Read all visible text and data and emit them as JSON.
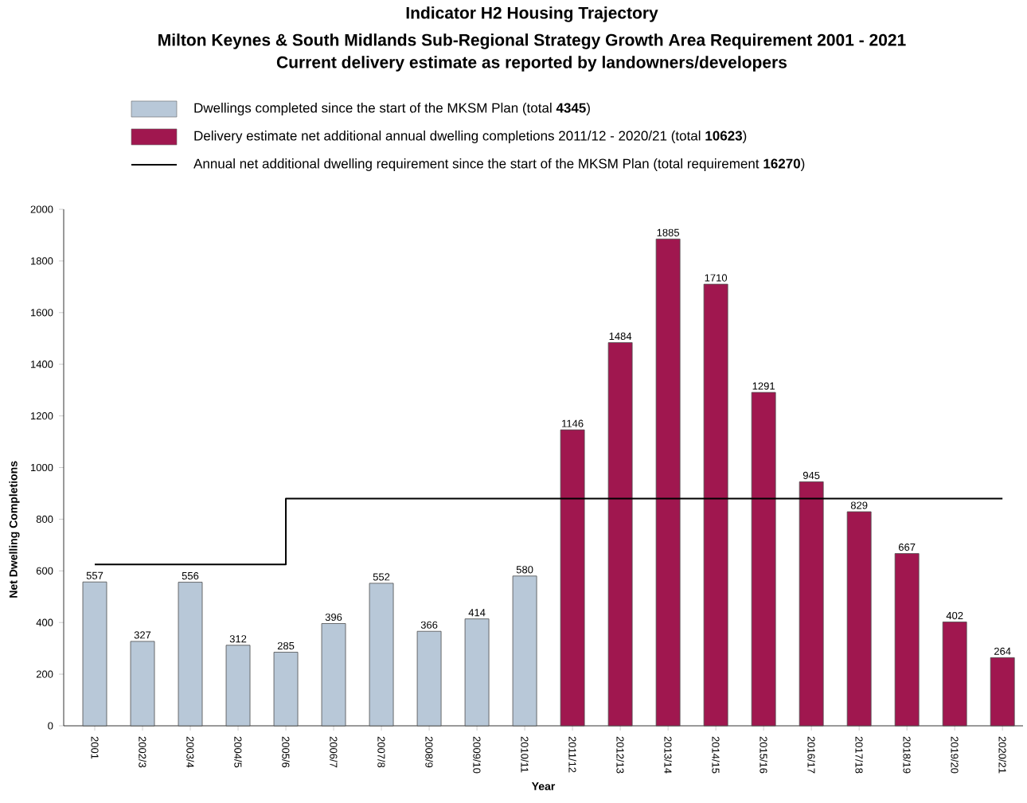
{
  "chart_data": {
    "type": "bar",
    "title": "Indicator H2  Housing Trajectory",
    "subtitle": "Milton Keynes & South Midlands Sub-Regional Strategy Growth Area Requirement 2001 - 2021",
    "annotations": [
      "Current delivery estimate as reported by landowners/developers"
    ],
    "xlabel": "Year",
    "ylabel": "Net Dwelling Completions",
    "categories": [
      "2001",
      "2002/3",
      "2003/4",
      "2004/5",
      "2005/6",
      "2006/7",
      "2007/8",
      "2008/9",
      "2009/10",
      "2010/11",
      "2011/12",
      "2012/13",
      "2013/14",
      "2014/15",
      "2015/16",
      "2016/17",
      "2017/18",
      "2018/19",
      "2019/20",
      "2020/21"
    ],
    "series": [
      {
        "name": "Dwellings completed since the start of the MKSM Plan (total **4345**)",
        "color": "#b8c8d8",
        "values": [
          557,
          327,
          556,
          312,
          285,
          396,
          552,
          366,
          414,
          580,
          null,
          null,
          null,
          null,
          null,
          null,
          null,
          null,
          null,
          null
        ],
        "value_labels": [
          "557",
          "327",
          "556",
          "312",
          "285",
          "396",
          "552",
          "366",
          "414",
          "580",
          null,
          null,
          null,
          null,
          null,
          null,
          null,
          null,
          null,
          null
        ]
      },
      {
        "name": "Delivery estimate net additional annual dwelling completions 2011/12 - 2020/21 (total **10623**)",
        "color": "#a0174f",
        "values": [
          null,
          null,
          null,
          null,
          null,
          null,
          null,
          null,
          null,
          null,
          1146,
          1484,
          1885,
          1710,
          1291,
          945,
          829,
          667,
          402,
          264
        ],
        "value_labels": [
          null,
          null,
          null,
          null,
          null,
          null,
          null,
          null,
          null,
          null,
          "1146",
          "1484",
          "1885",
          "1710",
          "1291",
          "945",
          "829",
          "667",
          "402",
          "264"
        ]
      },
      {
        "name": "Annual net additional dwelling requirement since the start of the MKSM Plan (total requirement **16270**)",
        "type": "step",
        "color": "#000000",
        "values": [
          625,
          625,
          625,
          625,
          880,
          880,
          880,
          880,
          880,
          880,
          880,
          880,
          880,
          880,
          880,
          880,
          880,
          880,
          880,
          880
        ]
      }
    ],
    "ylim": [
      0,
      2000
    ],
    "yticks": [
      0,
      200,
      400,
      600,
      800,
      1000,
      1200,
      1400,
      1600,
      1800,
      2000
    ],
    "legend": "top",
    "grid": false
  }
}
